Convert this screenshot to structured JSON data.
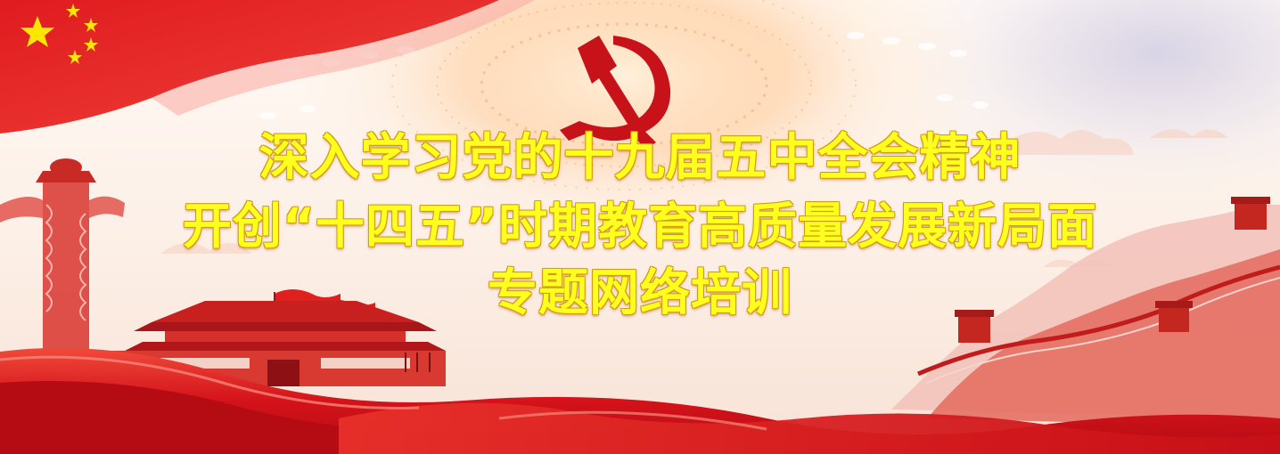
{
  "banner": {
    "title_lines": [
      "深入学习党的十九届五中全会精神",
      "开创“十四五”时期教育高质量发展新局面",
      "专题网络培训"
    ],
    "colors": {
      "title_fill": "#ffff1f",
      "title_outline": "#d49a10",
      "emblem_red": "#c8121a",
      "ribbon_red": "#d8141c",
      "flag_star": "#ffe600"
    },
    "icons": {
      "emblem": "hammer-and-sickle-icon",
      "flag": "national-flag-icon",
      "tiananmen": "tiananmen-gate-illustration",
      "huabiao": "huabiao-pillar-illustration",
      "great_wall": "great-wall-illustration"
    }
  }
}
